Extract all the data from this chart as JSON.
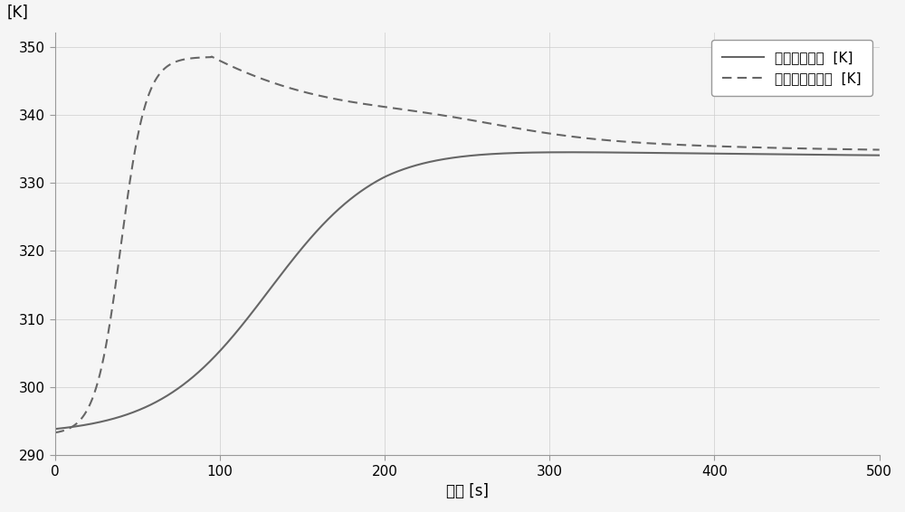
{
  "xlim": [
    0,
    500
  ],
  "ylim": [
    290,
    352
  ],
  "yticks": [
    290,
    300,
    310,
    320,
    330,
    340,
    350
  ],
  "xticks": [
    0,
    100,
    200,
    300,
    400,
    500
  ],
  "xlabel": "时间 [s]",
  "ylabel": "[K]",
  "line_color": "#666666",
  "background_color": "#f5f5f5",
  "grid_color": "#cccccc",
  "legend_labels": [
    "气瓶表面温度  [K]",
    "气瓶内氢气温度  [K]"
  ]
}
